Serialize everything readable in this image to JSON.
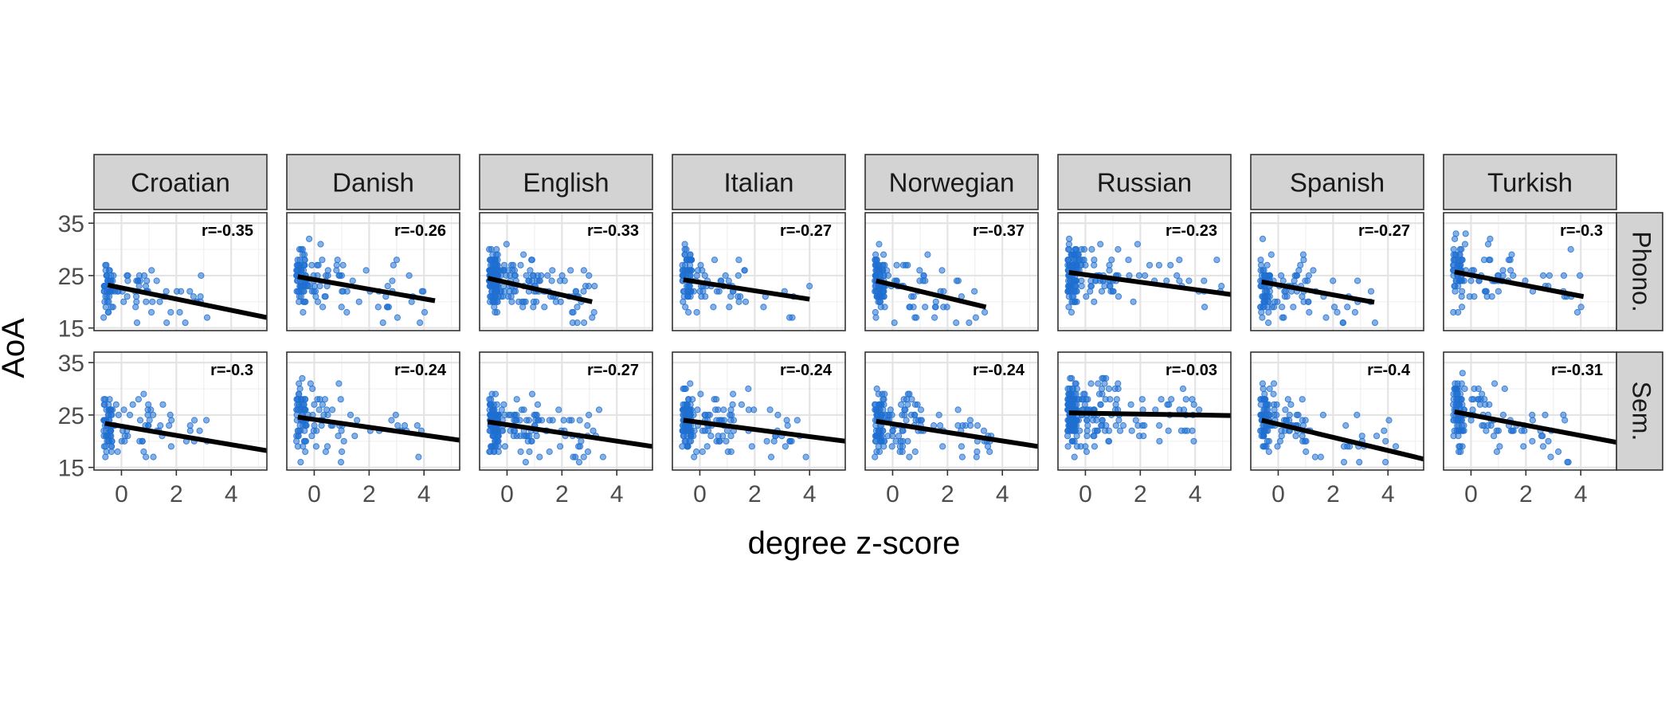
{
  "chart_data": {
    "type": "scatter",
    "title": "",
    "xlabel": "degree z-score",
    "ylabel": "AoA",
    "xlim": [
      -1,
      5.3
    ],
    "ylim": [
      14.5,
      37
    ],
    "x_ticks": [
      0,
      2,
      4
    ],
    "y_ticks": [
      15,
      25,
      35
    ],
    "grid": true,
    "legend": "none",
    "point_color": "#1f6fd1",
    "line_color": "#000000",
    "strip_fill": "#d3d3d3",
    "columns": [
      "Croatian",
      "Danish",
      "English",
      "Italian",
      "Norwegian",
      "Russian",
      "Spanish",
      "Turkish"
    ],
    "rows": [
      "Phono.",
      "Sem."
    ],
    "panels": [
      {
        "language": "Croatian",
        "network": "Phono.",
        "r": "r=-0.35",
        "fit": {
          "x": [
            -0.5,
            5.3
          ],
          "y": [
            23.2,
            17.0
          ]
        },
        "cloud": {
          "seed": 11,
          "n": 95,
          "xmax": 3.2,
          "spread": 3.8
        }
      },
      {
        "language": "Danish",
        "network": "Phono.",
        "r": "r=-0.26",
        "fit": {
          "x": [
            -0.6,
            4.4
          ],
          "y": [
            24.8,
            20.2
          ]
        },
        "cloud": {
          "seed": 12,
          "n": 125,
          "xmax": 4.4,
          "spread": 4.2
        }
      },
      {
        "language": "English",
        "network": "Phono.",
        "r": "r=-0.33",
        "fit": {
          "x": [
            -0.7,
            3.1
          ],
          "y": [
            24.5,
            20.0
          ]
        },
        "cloud": {
          "seed": 13,
          "n": 230,
          "xmax": 3.2,
          "spread": 3.6
        }
      },
      {
        "language": "Italian",
        "network": "Phono.",
        "r": "r=-0.27",
        "fit": {
          "x": [
            -0.6,
            4.0
          ],
          "y": [
            24.2,
            20.5
          ]
        },
        "cloud": {
          "seed": 14,
          "n": 110,
          "xmax": 4.0,
          "spread": 3.6
        }
      },
      {
        "language": "Norwegian",
        "network": "Phono.",
        "r": "r=-0.37",
        "fit": {
          "x": [
            -0.6,
            3.4
          ],
          "y": [
            24.0,
            19.0
          ]
        },
        "cloud": {
          "seed": 15,
          "n": 140,
          "xmax": 3.4,
          "spread": 3.8
        }
      },
      {
        "language": "Russian",
        "network": "Phono.",
        "r": "r=-0.23",
        "fit": {
          "x": [
            -0.6,
            5.3
          ],
          "y": [
            25.6,
            21.4
          ]
        },
        "cloud": {
          "seed": 16,
          "n": 170,
          "xmax": 5.0,
          "spread": 4.2
        }
      },
      {
        "language": "Spanish",
        "network": "Phono.",
        "r": "r=-0.27",
        "fit": {
          "x": [
            -0.6,
            3.5
          ],
          "y": [
            23.8,
            19.9
          ]
        },
        "cloud": {
          "seed": 17,
          "n": 120,
          "xmax": 3.6,
          "spread": 3.8
        }
      },
      {
        "language": "Turkish",
        "network": "Phono.",
        "r": "r=-0.3",
        "fit": {
          "x": [
            -0.6,
            4.1
          ],
          "y": [
            25.7,
            21.0
          ]
        },
        "cloud": {
          "seed": 18,
          "n": 110,
          "xmax": 4.1,
          "spread": 4.0
        }
      },
      {
        "language": "Croatian",
        "network": "Sem.",
        "r": "r=-0.3",
        "fit": {
          "x": [
            -0.6,
            5.3
          ],
          "y": [
            23.4,
            18.2
          ]
        },
        "cloud": {
          "seed": 21,
          "n": 105,
          "xmax": 3.3,
          "spread": 3.6
        }
      },
      {
        "language": "Danish",
        "network": "Sem.",
        "r": "r=-0.24",
        "fit": {
          "x": [
            -0.6,
            5.3
          ],
          "y": [
            24.6,
            20.2
          ]
        },
        "cloud": {
          "seed": 22,
          "n": 110,
          "xmax": 4.0,
          "spread": 4.2
        }
      },
      {
        "language": "English",
        "network": "Sem.",
        "r": "r=-0.27",
        "fit": {
          "x": [
            -0.7,
            5.3
          ],
          "y": [
            23.7,
            19.0
          ]
        },
        "cloud": {
          "seed": 23,
          "n": 210,
          "xmax": 3.5,
          "spread": 3.6
        }
      },
      {
        "language": "Italian",
        "network": "Sem.",
        "r": "r=-0.24",
        "fit": {
          "x": [
            -0.6,
            5.3
          ],
          "y": [
            24.0,
            20.0
          ]
        },
        "cloud": {
          "seed": 24,
          "n": 175,
          "xmax": 4.0,
          "spread": 3.6
        }
      },
      {
        "language": "Norwegian",
        "network": "Sem.",
        "r": "r=-0.24",
        "fit": {
          "x": [
            -0.6,
            5.3
          ],
          "y": [
            23.8,
            19.0
          ]
        },
        "cloud": {
          "seed": 25,
          "n": 160,
          "xmax": 3.6,
          "spread": 3.8
        }
      },
      {
        "language": "Russian",
        "network": "Sem.",
        "r": "r=-0.03",
        "fit": {
          "x": [
            -0.6,
            5.3
          ],
          "y": [
            25.4,
            24.9
          ]
        },
        "cloud": {
          "seed": 26,
          "n": 240,
          "xmax": 4.2,
          "spread": 4.0
        }
      },
      {
        "language": "Spanish",
        "network": "Sem.",
        "r": "r=-0.4",
        "fit": {
          "x": [
            -0.6,
            5.3
          ],
          "y": [
            24.0,
            16.6
          ]
        },
        "cloud": {
          "seed": 27,
          "n": 135,
          "xmax": 4.4,
          "spread": 3.8
        }
      },
      {
        "language": "Turkish",
        "network": "Sem.",
        "r": "r=-0.31",
        "fit": {
          "x": [
            -0.6,
            5.3
          ],
          "y": [
            25.6,
            19.8
          ]
        },
        "cloud": {
          "seed": 28,
          "n": 135,
          "xmax": 3.6,
          "spread": 4.0
        }
      }
    ]
  }
}
